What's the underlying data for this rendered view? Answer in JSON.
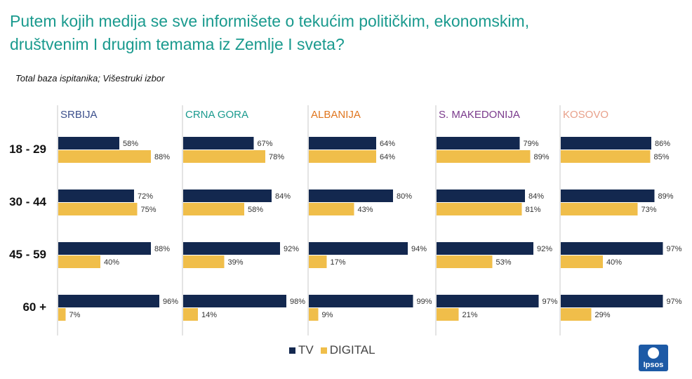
{
  "title": {
    "line1": "Putem kojih medija se sve informišete o tekućim političkim, ekonomskim,",
    "line2": "društvenim I drugim temama iz Zemlje I sveta?"
  },
  "subtitle": "Total baza ispitanika; Višestruki izbor",
  "legend": {
    "tv": "TV",
    "digital": "DIGITAL"
  },
  "logo": {
    "text": "Ipsos"
  },
  "colors": {
    "tv": "#13284f",
    "digital": "#f0be4a",
    "title": "#1a9a8e"
  },
  "chart_data": {
    "type": "bar",
    "orientation": "horizontal",
    "age_groups": [
      "18 - 29",
      "30 - 44",
      "45 - 59",
      "60 +"
    ],
    "series_names": [
      "TV",
      "DIGITAL"
    ],
    "countries": [
      {
        "name": "SRBIJA",
        "color": "#3b4f8c",
        "tv": [
          58,
          72,
          88,
          96
        ],
        "digital": [
          88,
          75,
          40,
          7
        ]
      },
      {
        "name": "CRNA GORA",
        "color": "#1a9a8e",
        "tv": [
          67,
          84,
          92,
          98
        ],
        "digital": [
          78,
          58,
          39,
          14
        ]
      },
      {
        "name": "ALBANIJA",
        "color": "#e0761f",
        "tv": [
          64,
          80,
          94,
          99
        ],
        "digital": [
          64,
          43,
          17,
          9
        ]
      },
      {
        "name": "S. MAKEDONIJA",
        "color": "#7a3a8c",
        "tv": [
          79,
          84,
          92,
          97
        ],
        "digital": [
          89,
          81,
          53,
          21
        ]
      },
      {
        "name": "KOSOVO",
        "color": "#e8a08a",
        "tv": [
          86,
          89,
          97,
          97
        ],
        "digital": [
          85,
          73,
          40,
          29
        ]
      }
    ],
    "unit": "%",
    "xlim": [
      0,
      100
    ]
  }
}
